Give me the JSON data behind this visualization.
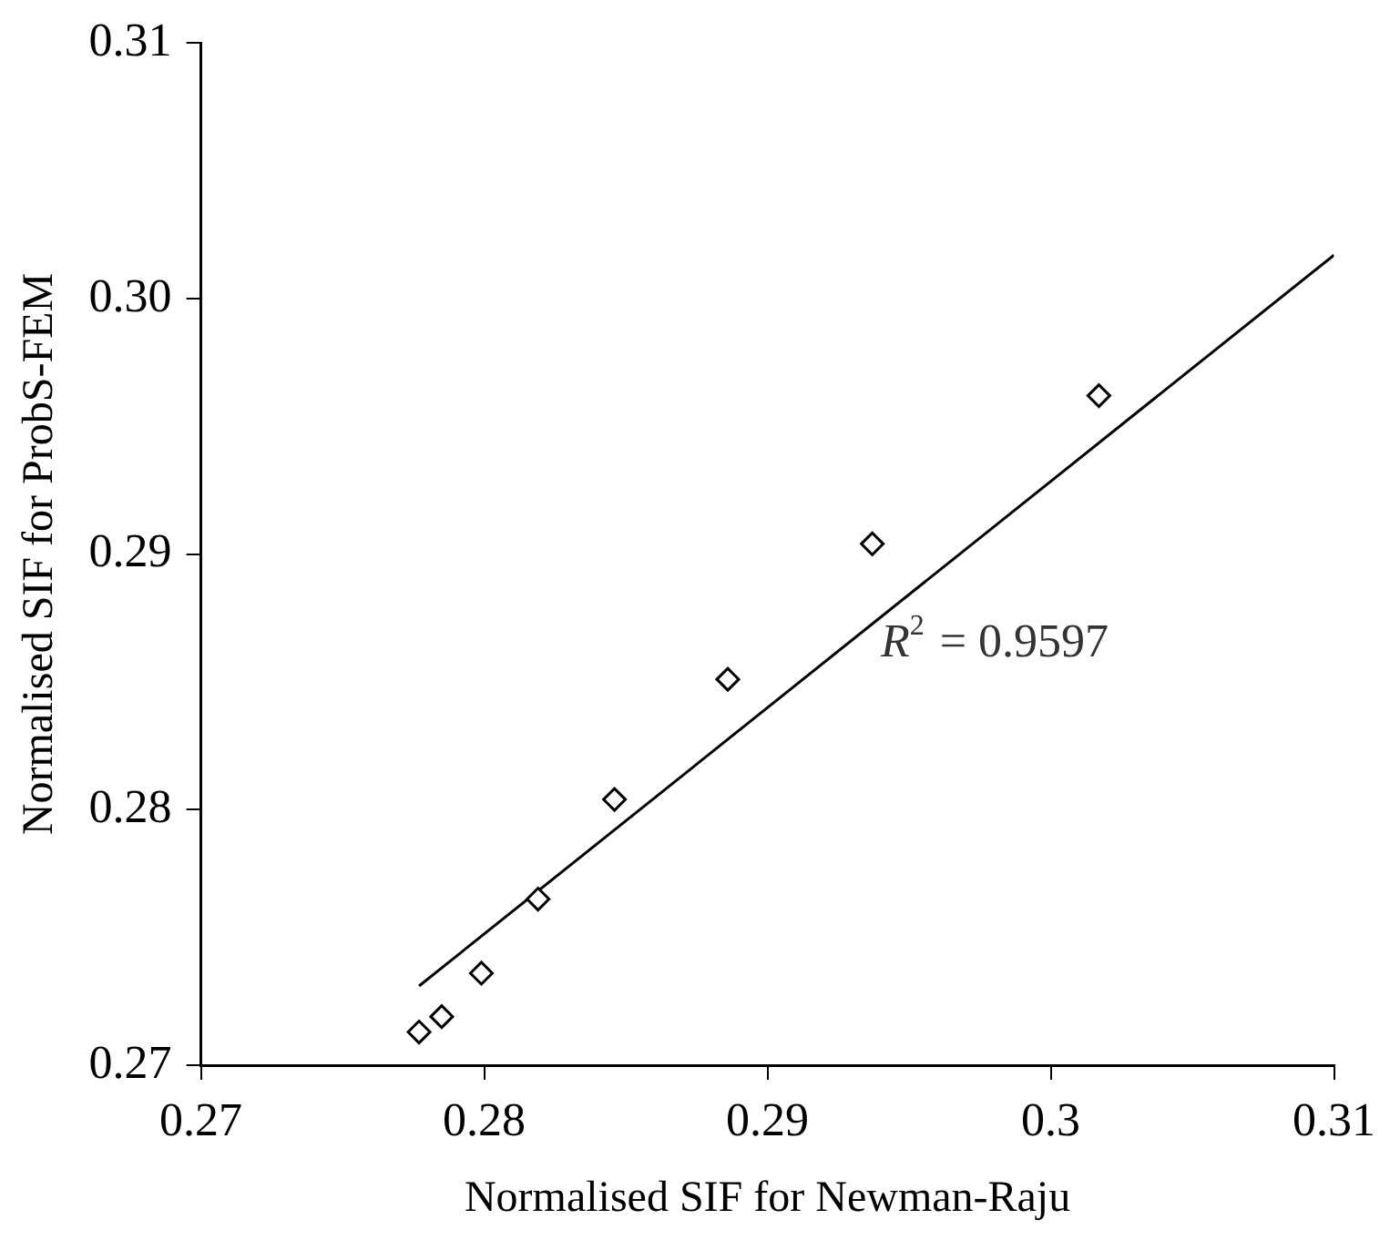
{
  "chart_data": {
    "type": "scatter",
    "xlabel": "Normalised SIF for Newman-Raju",
    "ylabel": "Normalised SIF for ProbS-FEM",
    "xlim": [
      0.27,
      0.31
    ],
    "xticks": [
      0.27,
      0.28,
      0.29,
      0.3,
      0.31
    ],
    "ylim": [
      0.27,
      0.31
    ],
    "yticks": [
      0.27,
      0.28,
      0.29,
      {
        "value": 0.3,
        "label": "0.30"
      },
      0.31
    ],
    "grid": false,
    "legend": false,
    "annotations": [
      "R$^{2}$ = 0.9597"
    ],
    "series": [
      {
        "type": "scatter",
        "color": "#000000",
        "marker": "diamond",
        "x": [
          0.2777,
          0.2785,
          0.2799,
          0.2819,
          0.2846,
          0.2886,
          0.2937,
          0.3017
        ],
        "values": [
          0.2713,
          0.2719,
          0.2736,
          0.2765,
          0.2804,
          0.2851,
          0.2904,
          0.2962
        ]
      },
      {
        "type": "line",
        "color": "#000000",
        "marker": "none",
        "line_style": "solid",
        "x": [
          0.2777,
          0.31
        ],
        "values": [
          0.2731,
          0.3017
        ]
      }
    ]
  }
}
